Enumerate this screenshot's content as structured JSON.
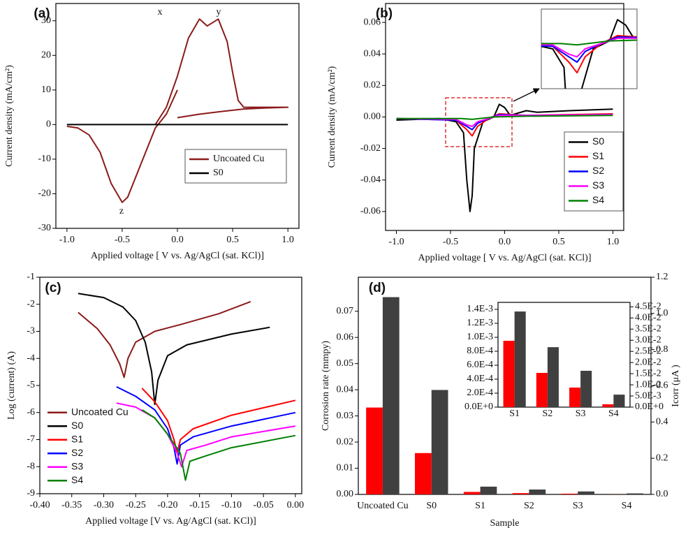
{
  "chart_data": [
    {
      "type": "line",
      "xlabel": "Applied voltage [ V vs. Ag/AgCl (sat. KCl)]",
      "ylabel": "Current density (mA/cm²)",
      "xlim": [
        -1.1,
        1.1
      ],
      "ylim": [
        -30,
        35
      ],
      "xticks": [
        {
          "value": -1.0,
          "label": "-1.0"
        },
        -0.5,
        {
          "value": 0,
          "label": "0.0"
        },
        0.5,
        {
          "value": 1.0,
          "label": "1.0"
        }
      ],
      "yticks": [
        -30,
        -20,
        -10,
        0,
        10,
        20,
        30
      ],
      "legend": "lower right",
      "annotations": [
        "(a)",
        "x",
        "y",
        "z"
      ],
      "series": [
        {
          "name": "Uncoated Cu",
          "color": "#8b1a1a",
          "x": [
            -1.0,
            -0.9,
            -0.8,
            -0.7,
            -0.6,
            -0.5,
            -0.45,
            -0.4,
            -0.3,
            -0.2,
            -0.1,
            0.0,
            null,
            -0.2,
            -0.1,
            0.0,
            0.1,
            0.2,
            0.27,
            0.37,
            0.45,
            0.5,
            0.55,
            0.6,
            0.7,
            0.8,
            0.9,
            1.0,
            0.8,
            0.6,
            0.4,
            0.2,
            0.0
          ],
          "values": [
            -0.5,
            -1,
            -3,
            -8,
            -17,
            -22.5,
            -21,
            -17,
            -9,
            -1,
            3,
            10,
            null,
            0,
            5,
            14,
            25,
            30.5,
            28.5,
            30.5,
            24,
            15,
            7,
            5,
            5,
            5,
            5,
            5,
            4.8,
            4.5,
            3.8,
            3,
            2
          ]
        },
        {
          "name": "S0",
          "color": "#000000",
          "x": [
            -1.0,
            1.0
          ],
          "values": [
            0,
            0
          ]
        }
      ]
    },
    {
      "type": "line",
      "xlabel": "Applied voltage [ V vs. Ag/AgCl (sat. KCl)]",
      "ylabel": "Current density (mA/cm²)",
      "xlim": [
        -1.1,
        1.1
      ],
      "ylim": [
        -0.072,
        0.072
      ],
      "xticks": [
        {
          "value": -1.0,
          "label": "-1.0"
        },
        -0.5,
        {
          "value": 0,
          "label": "0.0"
        },
        0.5,
        {
          "value": 1.0,
          "label": "1.0"
        }
      ],
      "yticks": [
        -0.06,
        -0.04,
        -0.02,
        {
          "value": 0,
          "label": "0.00"
        },
        0.02,
        0.04,
        0.06
      ],
      "legend": "lower right",
      "annotations": [
        "(b)"
      ],
      "series": [
        {
          "name": "S0",
          "color": "#000000",
          "x": [
            -1.0,
            -0.6,
            -0.45,
            -0.38,
            -0.35,
            -0.32,
            -0.3,
            -0.28,
            -0.2,
            -0.1,
            -0.05,
            0.0,
            0.05,
            0.2,
            0.3,
            0.6,
            1.0
          ],
          "values": [
            -0.002,
            -0.001,
            -0.003,
            -0.01,
            -0.04,
            -0.06,
            -0.05,
            -0.02,
            -0.003,
            0.0,
            0.008,
            0.006,
            0.001,
            0.004,
            0.003,
            0.004,
            0.005
          ]
        },
        {
          "name": "S1",
          "color": "#ff0000",
          "x": [
            -1.0,
            -0.45,
            -0.35,
            -0.3,
            -0.25,
            -0.15,
            -0.05,
            0.2,
            1.0
          ],
          "values": [
            -0.001,
            -0.002,
            -0.008,
            -0.012,
            -0.006,
            -0.001,
            0.002,
            0.001,
            0.002
          ]
        },
        {
          "name": "S2",
          "color": "#0000ff",
          "x": [
            -1.0,
            -0.45,
            -0.35,
            -0.3,
            -0.25,
            -0.15,
            -0.05,
            0.2,
            1.0
          ],
          "values": [
            -0.001,
            -0.002,
            -0.006,
            -0.008,
            -0.004,
            -0.001,
            0.0015,
            0.001,
            0.0015
          ]
        },
        {
          "name": "S3",
          "color": "#ff00ff",
          "x": [
            -1.0,
            -0.45,
            -0.35,
            -0.3,
            -0.25,
            -0.15,
            -0.05,
            0.2,
            1.0
          ],
          "values": [
            -0.001,
            -0.0015,
            -0.005,
            -0.006,
            -0.003,
            -0.001,
            0.001,
            0.001,
            0.0015
          ]
        },
        {
          "name": "S4",
          "color": "#008000",
          "x": [
            -1.0,
            -0.4,
            -0.3,
            -0.1,
            0.2,
            1.0
          ],
          "values": [
            -0.001,
            -0.001,
            -0.0015,
            0.0,
            0.0005,
            0.001
          ]
        }
      ]
    },
    {
      "type": "line",
      "xlabel": "Applied voltage [V vs. Ag/AgCl (sat. KCl)]",
      "ylabel": "Log (current) (A)",
      "xlim": [
        -0.4,
        0.01
      ],
      "ylim": [
        -9,
        -1
      ],
      "xticks": [
        {
          "value": -0.4,
          "label": "-0.40"
        },
        -0.35,
        {
          "value": -0.3,
          "label": "-0.30"
        },
        -0.25,
        {
          "value": -0.2,
          "label": "-0.20"
        },
        -0.15,
        {
          "value": -0.1,
          "label": "-0.10"
        },
        -0.05,
        {
          "value": 0,
          "label": "0.00"
        }
      ],
      "yticks": [
        -9,
        -8,
        -7,
        -6,
        -5,
        -4,
        -3,
        -2,
        -1
      ],
      "legend": "lower left",
      "annotations": [
        "(c)"
      ],
      "series": [
        {
          "name": "Uncoated Cu",
          "color": "#8b1a1a",
          "x": [
            -0.34,
            -0.31,
            -0.29,
            -0.275,
            -0.268,
            -0.262,
            -0.25,
            -0.22,
            -0.18,
            -0.12,
            -0.07
          ],
          "values": [
            -2.3,
            -2.9,
            -3.5,
            -4.2,
            -4.7,
            -4.0,
            -3.4,
            -3.0,
            -2.75,
            -2.35,
            -1.9
          ]
        },
        {
          "name": "S0",
          "color": "#000000",
          "x": [
            -0.34,
            -0.3,
            -0.27,
            -0.25,
            -0.235,
            -0.225,
            -0.22,
            -0.215,
            -0.2,
            -0.17,
            -0.1,
            -0.04
          ],
          "values": [
            -1.6,
            -1.75,
            -2.1,
            -2.6,
            -3.4,
            -4.5,
            -5.7,
            -4.8,
            -3.9,
            -3.5,
            -3.1,
            -2.85
          ]
        },
        {
          "name": "S1",
          "color": "#ff0000",
          "x": [
            -0.24,
            -0.22,
            -0.2,
            -0.19,
            -0.185,
            -0.18,
            -0.16,
            -0.1,
            0.0
          ],
          "values": [
            -5.1,
            -5.6,
            -6.3,
            -7.0,
            -7.5,
            -7.0,
            -6.6,
            -6.1,
            -5.55
          ]
        },
        {
          "name": "S2",
          "color": "#0000ff",
          "x": [
            -0.28,
            -0.25,
            -0.22,
            -0.2,
            -0.19,
            -0.185,
            -0.18,
            -0.16,
            -0.1,
            0.0
          ],
          "values": [
            -5.05,
            -5.4,
            -5.9,
            -6.6,
            -7.3,
            -7.9,
            -7.2,
            -6.9,
            -6.5,
            -6.0
          ]
        },
        {
          "name": "S3",
          "color": "#ff00ff",
          "x": [
            -0.28,
            -0.25,
            -0.22,
            -0.2,
            -0.185,
            -0.178,
            -0.17,
            -0.14,
            -0.1,
            0.0
          ],
          "values": [
            -5.65,
            -5.8,
            -6.2,
            -6.8,
            -7.5,
            -8.0,
            -7.4,
            -7.2,
            -6.9,
            -6.5
          ]
        },
        {
          "name": "S4",
          "color": "#008000",
          "x": [
            -0.24,
            -0.22,
            -0.2,
            -0.18,
            -0.172,
            -0.165,
            -0.14,
            -0.1,
            0.0
          ],
          "values": [
            -5.9,
            -6.2,
            -6.8,
            -7.5,
            -8.5,
            -7.8,
            -7.6,
            -7.3,
            -6.85
          ]
        }
      ]
    },
    {
      "type": "bar",
      "xlabel": "Sample",
      "ylabel": "Corrosion rate (mmpy)",
      "y2label": "Icorr (μA )",
      "ylabel_color": "#ff0000",
      "categories": [
        "Uncoated Cu",
        "S0",
        "S1",
        "S2",
        "S3",
        "S4"
      ],
      "ylim": [
        0,
        0.083
      ],
      "y2lim": [
        0,
        1.2
      ],
      "yticks": [
        {
          "value": 0,
          "label": "0.00"
        },
        0.01,
        0.02,
        0.03,
        0.04,
        0.05,
        0.06,
        0.07
      ],
      "y2ticks": [
        {
          "value": 0,
          "label": "0.0"
        },
        0.2,
        0.4,
        0.6,
        0.8,
        {
          "value": 1.0,
          "label": "1.0"
        },
        1.2
      ],
      "annotations": [
        "(d)"
      ],
      "series": [
        {
          "color": "#ff0000",
          "values": [
            0.0332,
            0.0158,
            0.00095,
            0.00049,
            0.00028,
            4e-05
          ]
        },
        {
          "color": "#404040",
          "axis": "y2",
          "values": [
            1.09,
            0.577,
            0.0429,
            0.0269,
            0.0163,
            0.0056
          ]
        }
      ]
    },
    {
      "type": "bar",
      "categories": [
        "S1",
        "S2",
        "S3",
        "S4"
      ],
      "ylabel_color": "#ff0000",
      "ylim": [
        0,
        0.0015
      ],
      "y2lim": [
        0,
        0.047
      ],
      "yticks": [
        {
          "value": 0,
          "label": "0.0E+0"
        },
        {
          "value": 0.0002,
          "label": "2.0E-4"
        },
        {
          "value": 0.0004,
          "label": "4.0E-4"
        },
        {
          "value": 0.0006,
          "label": "6.0E-4"
        },
        {
          "value": 0.0008,
          "label": "8.0E-4"
        },
        {
          "value": 0.001,
          "label": "1.0E-3"
        },
        {
          "value": 0.0012,
          "label": "1.2E-3"
        },
        {
          "value": 0.0014,
          "label": "1.4E-3"
        }
      ],
      "y2ticks": [
        {
          "value": 0,
          "label": "0.0E+0"
        },
        {
          "value": 0.005,
          "label": "5.0E-3"
        },
        {
          "value": 0.01,
          "label": "1.0E-2"
        },
        {
          "value": 0.015,
          "label": "1.5E-2"
        },
        {
          "value": 0.02,
          "label": "2.0E-2"
        },
        {
          "value": 0.025,
          "label": "2.5E-2"
        },
        {
          "value": 0.03,
          "label": "3.0E-2"
        },
        {
          "value": 0.035,
          "label": "3.5E-2"
        },
        {
          "value": 0.04,
          "label": "4.0E-2"
        },
        {
          "value": 0.045,
          "label": "4.5E-2"
        }
      ],
      "series": [
        {
          "color": "#ff0000",
          "values": [
            0.00095,
            0.00049,
            0.00028,
            4e-05
          ]
        },
        {
          "color": "#404040",
          "axis": "y2",
          "values": [
            0.0429,
            0.0269,
            0.0163,
            0.0056
          ]
        }
      ]
    }
  ]
}
